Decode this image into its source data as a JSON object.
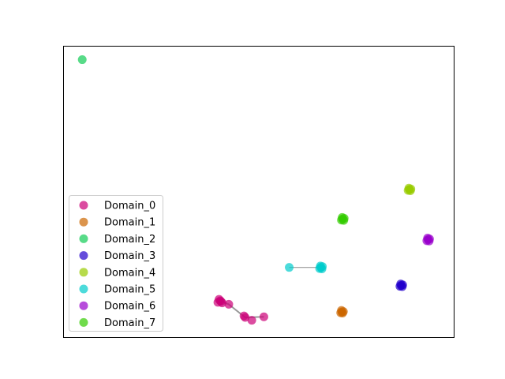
{
  "chart_data": {
    "type": "scatter",
    "title": "",
    "xlabel": "",
    "ylabel": "",
    "axes_ticks_visible": false,
    "grid": false,
    "legend_position": "lower-left",
    "xlim": [
      0,
      100
    ],
    "ylim": [
      0,
      100
    ],
    "series": [
      {
        "name": "Domain_0",
        "color": "#cc0077",
        "points": [
          [
            40.1,
            12.5
          ],
          [
            39.5,
            12.0
          ],
          [
            40.6,
            11.8
          ],
          [
            39.8,
            13.0
          ],
          [
            40.3,
            12.3
          ],
          [
            42.3,
            11.3
          ],
          [
            46.5,
            6.8
          ],
          [
            46.2,
            7.3
          ],
          [
            48.2,
            5.8
          ],
          [
            51.3,
            7.0
          ]
        ]
      },
      {
        "name": "Domain_1",
        "color": "#cc6600",
        "points": [
          [
            71.3,
            8.7
          ],
          [
            71.0,
            8.4
          ],
          [
            71.7,
            8.8
          ],
          [
            71.2,
            9.2
          ],
          [
            71.5,
            8.3
          ]
        ]
      },
      {
        "name": "Domain_2",
        "color": "#11cc55",
        "points": [
          [
            4.7,
            95.5
          ]
        ]
      },
      {
        "name": "Domain_3",
        "color": "#2200cc",
        "points": [
          [
            86.5,
            17.8
          ],
          [
            86.2,
            17.5
          ],
          [
            86.9,
            18.0
          ],
          [
            86.4,
            18.3
          ],
          [
            86.8,
            17.4
          ]
        ]
      },
      {
        "name": "Domain_4",
        "color": "#99cc00",
        "points": [
          [
            88.6,
            50.8
          ],
          [
            88.3,
            50.5
          ],
          [
            89.0,
            51.0
          ],
          [
            88.5,
            51.3
          ],
          [
            88.9,
            50.4
          ]
        ]
      },
      {
        "name": "Domain_5",
        "color": "#00cccc",
        "points": [
          [
            65.9,
            24.0
          ],
          [
            65.6,
            23.6
          ],
          [
            66.3,
            24.3
          ],
          [
            65.8,
            24.5
          ],
          [
            66.2,
            23.5
          ],
          [
            57.8,
            24.0
          ]
        ]
      },
      {
        "name": "Domain_6",
        "color": "#9900cc",
        "points": [
          [
            93.4,
            33.6
          ],
          [
            93.1,
            33.2
          ],
          [
            93.8,
            33.8
          ],
          [
            93.3,
            34.1
          ],
          [
            93.7,
            33.1
          ]
        ]
      },
      {
        "name": "Domain_7",
        "color": "#33cc00",
        "points": [
          [
            71.5,
            40.7
          ],
          [
            71.2,
            40.3
          ],
          [
            71.9,
            40.9
          ],
          [
            71.4,
            41.2
          ],
          [
            71.8,
            40.2
          ]
        ]
      }
    ],
    "connections": [
      {
        "from": [
          65.9,
          24.0
        ],
        "to": [
          57.8,
          24.0
        ]
      },
      {
        "from": [
          40.1,
          12.5
        ],
        "to": [
          42.3,
          11.3
        ]
      },
      {
        "from": [
          42.3,
          11.3
        ],
        "to": [
          46.5,
          6.8
        ]
      },
      {
        "from": [
          46.5,
          6.8
        ],
        "to": [
          51.3,
          7.0
        ]
      }
    ]
  }
}
